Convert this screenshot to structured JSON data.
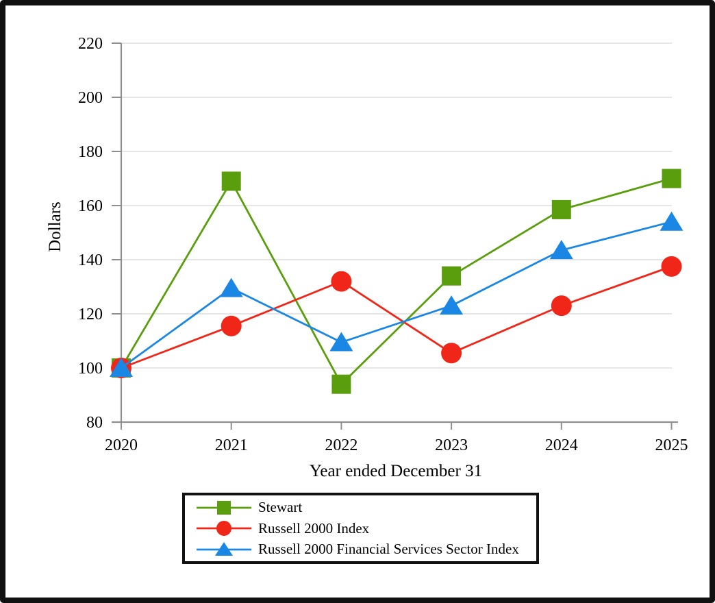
{
  "chart_data": {
    "type": "line",
    "title": "",
    "xlabel": "Year ended December 31",
    "ylabel": "Dollars",
    "x": [
      2020,
      2021,
      2022,
      2023,
      2024,
      2025
    ],
    "x_tick_labels": [
      "2020",
      "2021",
      "2022",
      "2023",
      "2024",
      "2025"
    ],
    "y_ticks": [
      80,
      100,
      120,
      140,
      160,
      180,
      200,
      220
    ],
    "y_tick_labels": [
      "80",
      "100",
      "120",
      "140",
      "160",
      "180",
      "200",
      "220"
    ],
    "ylim": [
      80,
      220
    ],
    "grid": "horizontal-only",
    "legend_position": "bottom",
    "series": [
      {
        "name": "Stewart",
        "marker": "square",
        "color": "#5a9e0d",
        "values": [
          100,
          169,
          94,
          134,
          158.5,
          170
        ]
      },
      {
        "name": "Russell 2000 Index",
        "marker": "circle",
        "color": "#f02718",
        "values": [
          100,
          115.5,
          132,
          105.5,
          123,
          137.5
        ]
      },
      {
        "name": "Russell 2000 Financial Services Sector Index",
        "marker": "triangle",
        "color": "#1b87e4",
        "values": [
          100,
          129.5,
          109.5,
          123,
          143.5,
          154
        ]
      }
    ]
  },
  "style_colors": {
    "gridline": "#e2e2e2",
    "axis": "#8f8f8f",
    "frame_border": "#111111",
    "text": "#000000"
  }
}
